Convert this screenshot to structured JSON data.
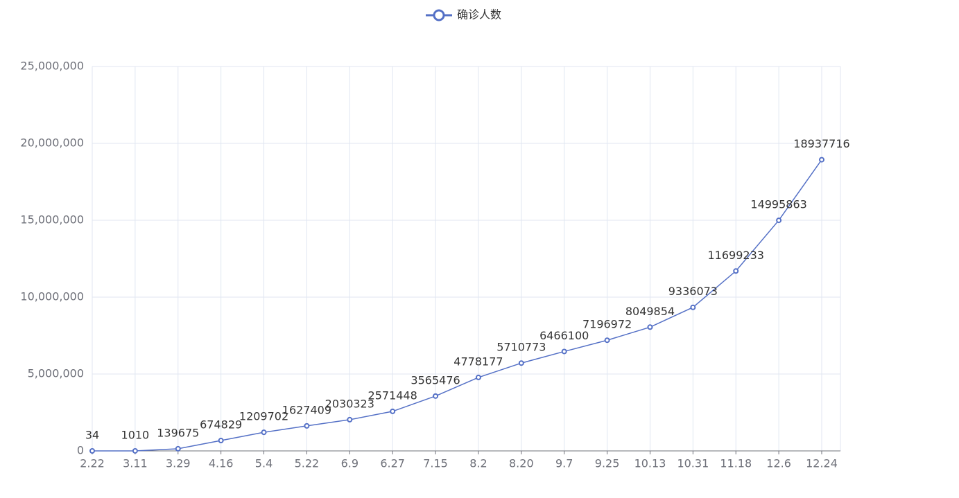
{
  "chart_data": {
    "type": "line",
    "categories": [
      "2.22",
      "3.11",
      "3.29",
      "4.16",
      "5.4",
      "5.22",
      "6.9",
      "6.27",
      "7.15",
      "8.2",
      "8.20",
      "9.7",
      "9.25",
      "10.13",
      "10.31",
      "11.18",
      "12.6",
      "12.24"
    ],
    "series": [
      {
        "name": "确诊人数",
        "color": "#5470c6",
        "values": [
          34,
          1010,
          139675,
          674829,
          1209702,
          1627409,
          2030323,
          2571448,
          3565476,
          4778177,
          5710773,
          6466100,
          7196972,
          8049854,
          9336073,
          11699233,
          14995863,
          18937716
        ]
      }
    ],
    "ylim": [
      0,
      25000000
    ],
    "yticks": [
      0,
      {
        "value": 5000000,
        "label": "5,000,000"
      },
      {
        "value": 10000000,
        "label": "10,000,000"
      },
      {
        "value": 15000000,
        "label": "15,000,000"
      },
      {
        "value": 20000000,
        "label": "20,000,000"
      },
      {
        "value": 25000000,
        "label": "25,000,000"
      }
    ],
    "grid": true
  }
}
